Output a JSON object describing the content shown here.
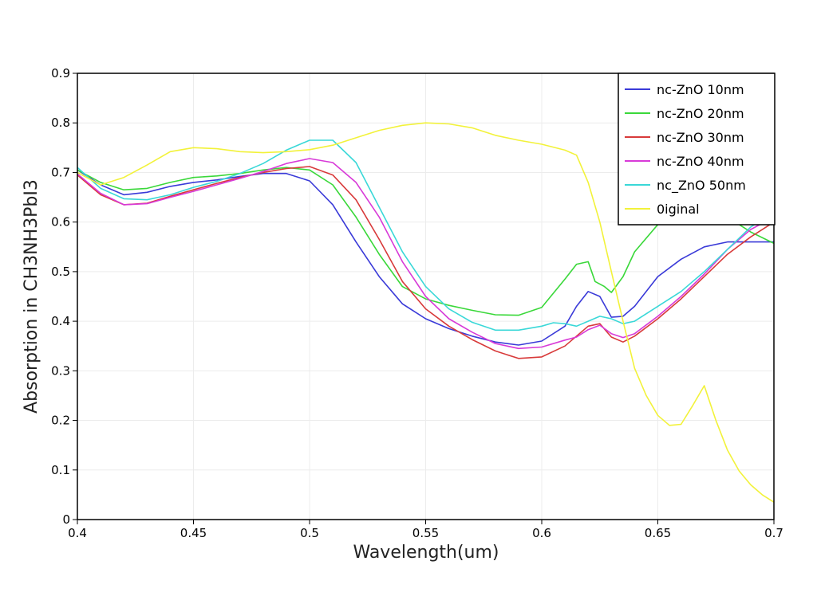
{
  "chart_data": {
    "type": "line",
    "title": "",
    "xlabel": "Wavelength(um)",
    "ylabel": "Absorption in CH3NH3PbI3",
    "xlim": [
      0.4,
      0.7
    ],
    "ylim": [
      0,
      0.9
    ],
    "xticks": [
      "0.4",
      "0.45",
      "0.5",
      "0.55",
      "0.6",
      "0.65",
      "0.7"
    ],
    "yticks": [
      "0",
      "0.1",
      "0.2",
      "0.3",
      "0.4",
      "0.5",
      "0.6",
      "0.7",
      "0.8",
      "0.9"
    ],
    "grid": true,
    "legend_position": "top-right",
    "series": [
      {
        "name": "nc-ZnO 10nm",
        "color": "#3a3ad8",
        "x": [
          0.4,
          0.41,
          0.42,
          0.43,
          0.44,
          0.45,
          0.46,
          0.47,
          0.48,
          0.49,
          0.5,
          0.51,
          0.52,
          0.53,
          0.54,
          0.55,
          0.56,
          0.57,
          0.58,
          0.59,
          0.6,
          0.61,
          0.615,
          0.62,
          0.625,
          0.63,
          0.635,
          0.64,
          0.65,
          0.66,
          0.67,
          0.68,
          0.69,
          0.7
        ],
        "y": [
          0.705,
          0.675,
          0.655,
          0.66,
          0.672,
          0.68,
          0.685,
          0.692,
          0.698,
          0.698,
          0.683,
          0.635,
          0.56,
          0.49,
          0.435,
          0.405,
          0.385,
          0.37,
          0.358,
          0.352,
          0.36,
          0.39,
          0.43,
          0.46,
          0.45,
          0.408,
          0.41,
          0.43,
          0.49,
          0.525,
          0.55,
          0.56,
          0.56,
          0.56
        ]
      },
      {
        "name": "nc-ZnO 20nm",
        "color": "#3ad83a",
        "x": [
          0.4,
          0.41,
          0.42,
          0.43,
          0.44,
          0.45,
          0.46,
          0.47,
          0.48,
          0.49,
          0.5,
          0.51,
          0.52,
          0.53,
          0.54,
          0.55,
          0.56,
          0.57,
          0.58,
          0.59,
          0.6,
          0.61,
          0.615,
          0.62,
          0.623,
          0.627,
          0.63,
          0.635,
          0.64,
          0.65,
          0.66,
          0.67,
          0.68,
          0.69,
          0.7
        ],
        "y": [
          0.705,
          0.68,
          0.665,
          0.668,
          0.68,
          0.69,
          0.693,
          0.698,
          0.705,
          0.71,
          0.705,
          0.675,
          0.61,
          0.535,
          0.47,
          0.445,
          0.432,
          0.422,
          0.413,
          0.412,
          0.428,
          0.485,
          0.515,
          0.52,
          0.48,
          0.47,
          0.458,
          0.49,
          0.54,
          0.595,
          0.62,
          0.625,
          0.61,
          0.58,
          0.557
        ]
      },
      {
        "name": "nc-ZnO 30nm",
        "color": "#d83a3a",
        "x": [
          0.4,
          0.41,
          0.42,
          0.43,
          0.44,
          0.45,
          0.46,
          0.47,
          0.48,
          0.49,
          0.5,
          0.51,
          0.52,
          0.53,
          0.54,
          0.55,
          0.56,
          0.57,
          0.58,
          0.59,
          0.6,
          0.61,
          0.615,
          0.62,
          0.625,
          0.63,
          0.635,
          0.64,
          0.65,
          0.66,
          0.67,
          0.68,
          0.69,
          0.7
        ],
        "y": [
          0.695,
          0.655,
          0.635,
          0.638,
          0.652,
          0.665,
          0.678,
          0.69,
          0.7,
          0.708,
          0.712,
          0.695,
          0.645,
          0.565,
          0.48,
          0.425,
          0.39,
          0.363,
          0.34,
          0.325,
          0.328,
          0.35,
          0.37,
          0.39,
          0.395,
          0.368,
          0.358,
          0.37,
          0.405,
          0.445,
          0.49,
          0.535,
          0.57,
          0.6
        ]
      },
      {
        "name": "nc-ZnO 40nm",
        "color": "#d83ad8",
        "x": [
          0.4,
          0.41,
          0.42,
          0.43,
          0.44,
          0.45,
          0.46,
          0.47,
          0.48,
          0.49,
          0.5,
          0.51,
          0.52,
          0.53,
          0.54,
          0.55,
          0.56,
          0.57,
          0.58,
          0.59,
          0.6,
          0.61,
          0.615,
          0.62,
          0.625,
          0.63,
          0.635,
          0.64,
          0.65,
          0.66,
          0.67,
          0.68,
          0.69,
          0.7
        ],
        "y": [
          0.697,
          0.658,
          0.635,
          0.637,
          0.65,
          0.662,
          0.675,
          0.688,
          0.702,
          0.718,
          0.728,
          0.72,
          0.68,
          0.61,
          0.52,
          0.45,
          0.405,
          0.378,
          0.355,
          0.345,
          0.348,
          0.362,
          0.368,
          0.383,
          0.392,
          0.375,
          0.367,
          0.375,
          0.41,
          0.45,
          0.495,
          0.545,
          0.585,
          0.61
        ]
      },
      {
        "name": "nc_ZnO 50nm",
        "color": "#3ad8d8",
        "x": [
          0.4,
          0.41,
          0.42,
          0.43,
          0.44,
          0.45,
          0.46,
          0.47,
          0.48,
          0.49,
          0.5,
          0.51,
          0.52,
          0.53,
          0.54,
          0.55,
          0.56,
          0.57,
          0.58,
          0.59,
          0.6,
          0.605,
          0.61,
          0.615,
          0.62,
          0.625,
          0.63,
          0.635,
          0.64,
          0.65,
          0.66,
          0.67,
          0.68,
          0.69,
          0.7
        ],
        "y": [
          0.71,
          0.668,
          0.647,
          0.645,
          0.655,
          0.67,
          0.682,
          0.698,
          0.718,
          0.745,
          0.765,
          0.765,
          0.72,
          0.63,
          0.54,
          0.47,
          0.425,
          0.398,
          0.382,
          0.382,
          0.39,
          0.397,
          0.395,
          0.39,
          0.4,
          0.41,
          0.405,
          0.395,
          0.4,
          0.43,
          0.46,
          0.5,
          0.545,
          0.59,
          0.62
        ]
      },
      {
        "name": "0iginal",
        "color": "#f2f23a",
        "x": [
          0.4,
          0.41,
          0.42,
          0.43,
          0.44,
          0.45,
          0.46,
          0.47,
          0.48,
          0.49,
          0.5,
          0.51,
          0.52,
          0.53,
          0.54,
          0.55,
          0.56,
          0.57,
          0.58,
          0.59,
          0.6,
          0.61,
          0.615,
          0.62,
          0.625,
          0.63,
          0.635,
          0.64,
          0.645,
          0.65,
          0.655,
          0.66,
          0.665,
          0.67,
          0.675,
          0.68,
          0.685,
          0.69,
          0.695,
          0.7
        ],
        "y": [
          0.7,
          0.675,
          0.69,
          0.715,
          0.742,
          0.75,
          0.748,
          0.742,
          0.74,
          0.742,
          0.746,
          0.755,
          0.77,
          0.785,
          0.795,
          0.8,
          0.798,
          0.79,
          0.775,
          0.765,
          0.757,
          0.745,
          0.735,
          0.68,
          0.6,
          0.5,
          0.4,
          0.305,
          0.25,
          0.21,
          0.19,
          0.192,
          0.23,
          0.27,
          0.2,
          0.14,
          0.098,
          0.07,
          0.05,
          0.035
        ]
      }
    ]
  }
}
